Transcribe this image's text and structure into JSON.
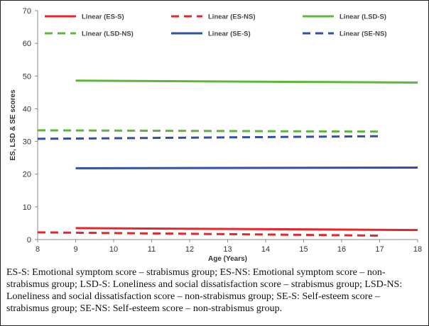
{
  "chart_data": {
    "type": "line",
    "title": "",
    "xlabel": "Age (Years)",
    "ylabel": "ES, LSD & SE scores",
    "xlim": [
      8,
      18
    ],
    "ylim": [
      0,
      70
    ],
    "xticks": [
      "8",
      "9",
      "10",
      "11",
      "12",
      "13",
      "14",
      "15",
      "16",
      "17",
      "18"
    ],
    "yticks": [
      "0",
      "10",
      "20",
      "30",
      "40",
      "50",
      "60",
      "70"
    ],
    "legend_position": "top",
    "series": [
      {
        "name": "Linear (ES-S)",
        "color": "#e8252a",
        "dash": "solid",
        "x": [
          9,
          18
        ],
        "y": [
          3.5,
          2.9
        ]
      },
      {
        "name": "Linear (ES-NS)",
        "color": "#e8252a",
        "dash": "dashed",
        "x": [
          8,
          17
        ],
        "y": [
          2.2,
          1.2
        ]
      },
      {
        "name": "Linear (LSD-S)",
        "color": "#5cb83c",
        "dash": "solid",
        "x": [
          9,
          18
        ],
        "y": [
          48.6,
          48.0
        ]
      },
      {
        "name": "Linear (LSD-NS)",
        "color": "#5cb83c",
        "dash": "dashed",
        "x": [
          8,
          17
        ],
        "y": [
          33.4,
          33.0
        ]
      },
      {
        "name": "Linear (SE-S)",
        "color": "#2f4fa8",
        "dash": "solid",
        "x": [
          9,
          18
        ],
        "y": [
          21.8,
          22.0
        ]
      },
      {
        "name": "Linear (SE-NS)",
        "color": "#2f4fa8",
        "dash": "dashed",
        "x": [
          8,
          17
        ],
        "y": [
          30.8,
          31.6
        ]
      }
    ]
  },
  "caption": "ES-S: Emotional symptom score – strabismus group; ES-NS: Emotional symptom score – non-strabismus group; LSD-S: Loneliness and social dissatisfaction score – strabismus group; LSD-NS: Loneliness and social dissatisfaction score – non-strabismus group; SE-S: Self-esteem score – strabismus group; SE-NS: Self-esteem score – non-strabismus group."
}
